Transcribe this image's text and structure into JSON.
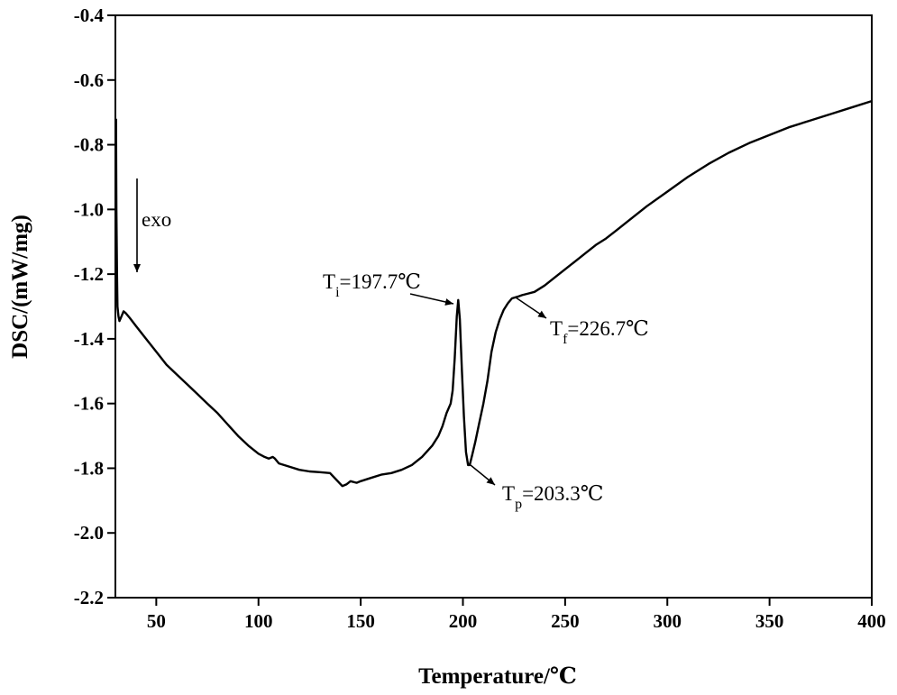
{
  "chart_data": {
    "type": "line",
    "title": "",
    "xlabel": "Temperature/℃",
    "ylabel": "DSC/(mW/mg)",
    "xlim": [
      30,
      400
    ],
    "ylim": [
      -2.2,
      -0.4
    ],
    "xticks": [
      50,
      100,
      150,
      200,
      250,
      300,
      350,
      400
    ],
    "yticks": [
      -0.4,
      -0.6,
      -0.8,
      -1.0,
      -1.2,
      -1.4,
      -1.6,
      -1.8,
      -2.0,
      -2.2
    ],
    "xtick_labels": [
      "50",
      "100",
      "150",
      "200",
      "250",
      "300",
      "350",
      "400"
    ],
    "ytick_labels": [
      "-0.4",
      "-0.6",
      "-0.8",
      "-1.0",
      "-1.2",
      "-1.4",
      "-1.6",
      "-1.8",
      "-2.0",
      "-2.2"
    ],
    "grid": false,
    "legend": "none",
    "series": [
      {
        "color": "#000000",
        "points": [
          [
            30.3,
            -0.72
          ],
          [
            30.5,
            -1.0
          ],
          [
            30.8,
            -1.2
          ],
          [
            31.0,
            -1.3
          ],
          [
            31.5,
            -1.33
          ],
          [
            32,
            -1.345
          ],
          [
            33,
            -1.33
          ],
          [
            34,
            -1.315
          ],
          [
            35,
            -1.32
          ],
          [
            37,
            -1.335
          ],
          [
            40,
            -1.36
          ],
          [
            45,
            -1.4
          ],
          [
            50,
            -1.44
          ],
          [
            55,
            -1.48
          ],
          [
            60,
            -1.51
          ],
          [
            65,
            -1.54
          ],
          [
            70,
            -1.57
          ],
          [
            75,
            -1.6
          ],
          [
            80,
            -1.63
          ],
          [
            85,
            -1.665
          ],
          [
            90,
            -1.7
          ],
          [
            95,
            -1.73
          ],
          [
            100,
            -1.755
          ],
          [
            103,
            -1.765
          ],
          [
            105,
            -1.77
          ],
          [
            107,
            -1.765
          ],
          [
            108,
            -1.77
          ],
          [
            110,
            -1.785
          ],
          [
            115,
            -1.795
          ],
          [
            120,
            -1.805
          ],
          [
            125,
            -1.81
          ],
          [
            130,
            -1.812
          ],
          [
            135,
            -1.815
          ],
          [
            138,
            -1.835
          ],
          [
            141,
            -1.855
          ],
          [
            143,
            -1.85
          ],
          [
            145,
            -1.84
          ],
          [
            148,
            -1.845
          ],
          [
            150,
            -1.84
          ],
          [
            155,
            -1.83
          ],
          [
            160,
            -1.82
          ],
          [
            165,
            -1.815
          ],
          [
            170,
            -1.805
          ],
          [
            175,
            -1.79
          ],
          [
            180,
            -1.765
          ],
          [
            185,
            -1.73
          ],
          [
            188,
            -1.7
          ],
          [
            190,
            -1.67
          ],
          [
            192,
            -1.63
          ],
          [
            194,
            -1.6
          ],
          [
            195,
            -1.56
          ],
          [
            196,
            -1.46
          ],
          [
            197,
            -1.33
          ],
          [
            197.7,
            -1.28
          ],
          [
            198.5,
            -1.34
          ],
          [
            199.5,
            -1.5
          ],
          [
            200.5,
            -1.64
          ],
          [
            201.5,
            -1.75
          ],
          [
            202.5,
            -1.79
          ],
          [
            203.3,
            -1.79
          ],
          [
            204.5,
            -1.76
          ],
          [
            206,
            -1.72
          ],
          [
            208,
            -1.66
          ],
          [
            210,
            -1.6
          ],
          [
            212,
            -1.53
          ],
          [
            214,
            -1.44
          ],
          [
            216,
            -1.38
          ],
          [
            218,
            -1.34
          ],
          [
            220,
            -1.31
          ],
          [
            222,
            -1.29
          ],
          [
            224,
            -1.275
          ],
          [
            226.7,
            -1.27
          ],
          [
            229,
            -1.265
          ],
          [
            232,
            -1.26
          ],
          [
            235,
            -1.255
          ],
          [
            240,
            -1.235
          ],
          [
            245,
            -1.21
          ],
          [
            250,
            -1.185
          ],
          [
            255,
            -1.16
          ],
          [
            260,
            -1.135
          ],
          [
            265,
            -1.11
          ],
          [
            270,
            -1.09
          ],
          [
            275,
            -1.065
          ],
          [
            280,
            -1.04
          ],
          [
            290,
            -0.99
          ],
          [
            300,
            -0.945
          ],
          [
            310,
            -0.9
          ],
          [
            320,
            -0.86
          ],
          [
            330,
            -0.825
          ],
          [
            340,
            -0.795
          ],
          [
            350,
            -0.77
          ],
          [
            360,
            -0.745
          ],
          [
            370,
            -0.725
          ],
          [
            380,
            -0.705
          ],
          [
            390,
            -0.685
          ],
          [
            400,
            -0.665
          ]
        ]
      }
    ],
    "annotations": [
      {
        "name": "exo-label",
        "text": "exo",
        "subscript": "",
        "suffix": ""
      },
      {
        "name": "annotation-ti",
        "text": "T",
        "subscript": "i",
        "suffix": "=197.7℃",
        "point": [
          197.7,
          -1.28
        ]
      },
      {
        "name": "annotation-tf",
        "text": "T",
        "subscript": "f",
        "suffix": "=226.7℃",
        "point": [
          226.7,
          -1.27
        ]
      },
      {
        "name": "annotation-tp",
        "text": "T",
        "subscript": "p",
        "suffix": "=203.3℃",
        "point": [
          203.3,
          -1.79
        ]
      }
    ]
  }
}
